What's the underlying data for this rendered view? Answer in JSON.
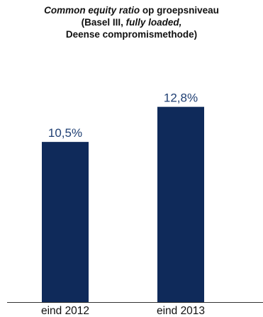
{
  "chart_data": {
    "type": "bar",
    "title": {
      "line1_italic": "Common equity ratio",
      "line1_rest": " op groepsniveau",
      "line2_start": "(Basel III, ",
      "line2_italic": "fully loaded,",
      "line3": "Deense compromismethode)"
    },
    "categories": [
      "eind 2012",
      "eind 2013"
    ],
    "values": [
      10.5,
      12.8
    ],
    "value_labels": [
      "10,5%",
      "12,8%"
    ],
    "unit": "%",
    "ylim": [
      0,
      17.2
    ],
    "grid": false,
    "legend": "none",
    "bar_color": "#0f2a5a",
    "label_color": "#1f3f73",
    "axis_color": "#333333"
  }
}
